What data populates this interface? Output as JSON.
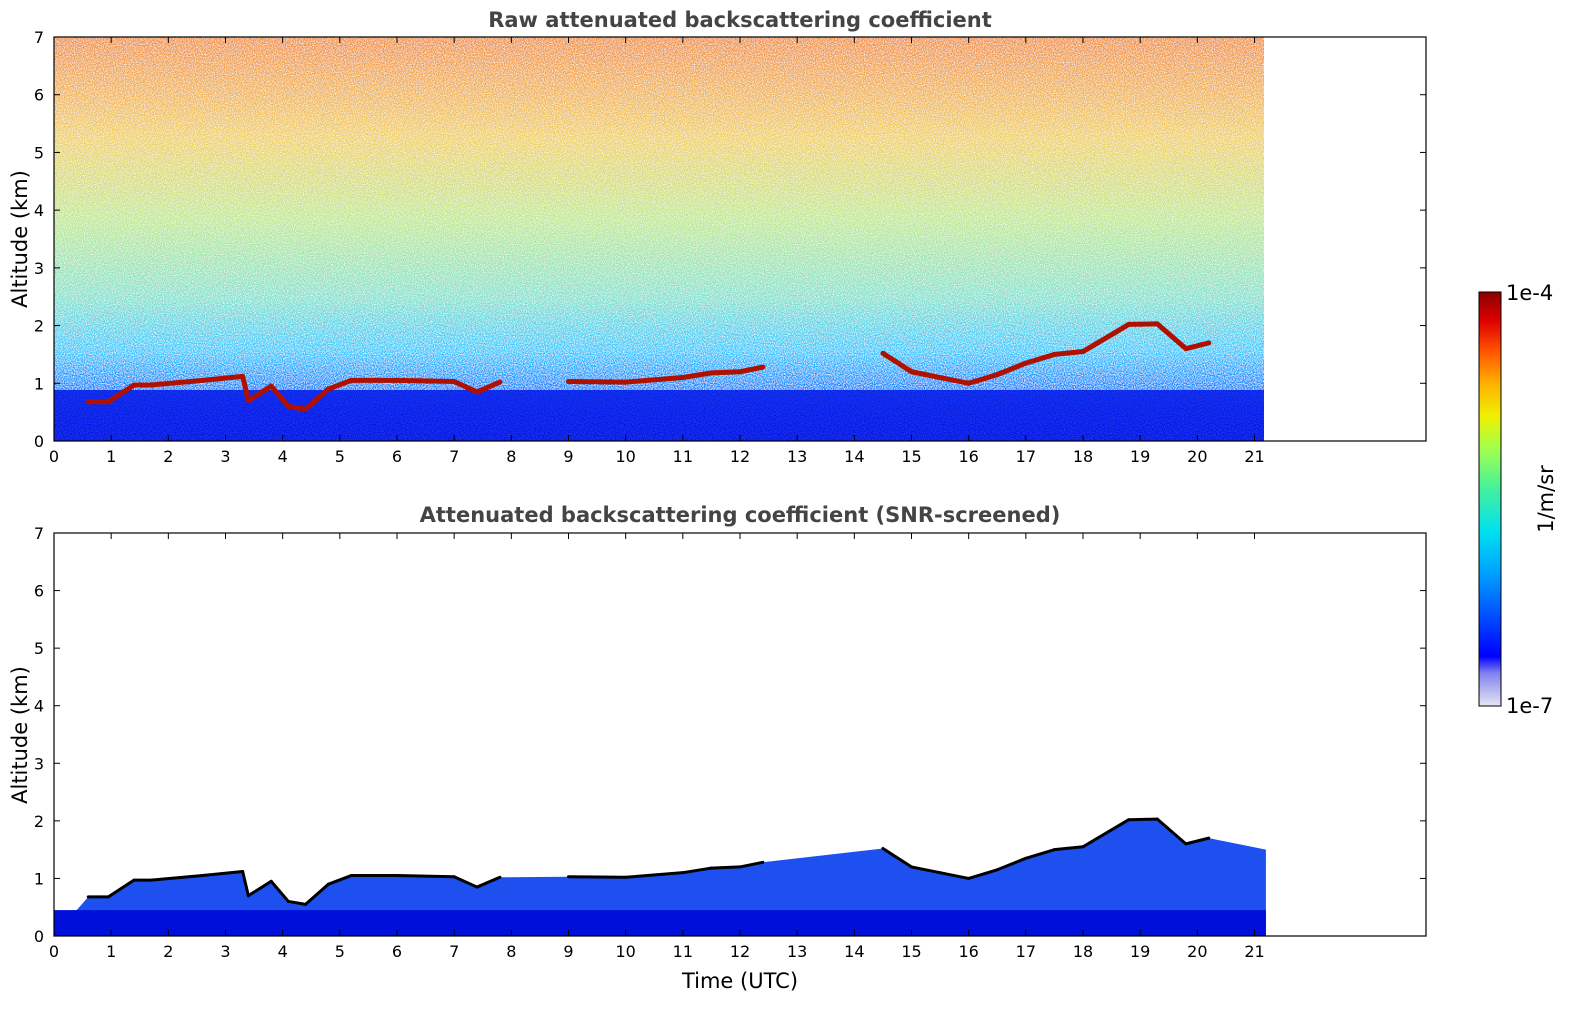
{
  "chart_data": [
    {
      "type": "heatmap",
      "title": "Raw attenuated backscattering coefficient",
      "xlabel": "",
      "ylabel": "Altitude (km)",
      "xlim": [
        0,
        24
      ],
      "ylim": [
        0,
        7
      ],
      "x_ticks": [
        0,
        1,
        2,
        3,
        4,
        5,
        6,
        7,
        8,
        9,
        10,
        11,
        12,
        13,
        14,
        15,
        16,
        17,
        18,
        19,
        20,
        21
      ],
      "y_ticks": [
        0,
        1,
        2,
        3,
        4,
        5,
        6,
        7
      ],
      "data_extent_x": [
        0,
        21.2
      ],
      "grid": false,
      "layers": {
        "cloud_base_km": [
          {
            "x": 0.6,
            "y": 0.68
          },
          {
            "x": 0.95,
            "y": 0.68
          },
          {
            "x": 1.4,
            "y": 0.97
          },
          {
            "x": 1.7,
            "y": 0.97
          },
          {
            "x": 2.6,
            "y": 1.05
          },
          {
            "x": 3.3,
            "y": 1.12
          },
          {
            "x": 3.4,
            "y": 0.7
          },
          {
            "x": 3.8,
            "y": 0.95
          },
          {
            "x": 4.1,
            "y": 0.6
          },
          {
            "x": 4.4,
            "y": 0.55
          },
          {
            "x": 4.8,
            "y": 0.9
          },
          {
            "x": 5.2,
            "y": 1.05
          },
          {
            "x": 6.0,
            "y": 1.05
          },
          {
            "x": 7.0,
            "y": 1.03
          },
          {
            "x": 7.4,
            "y": 0.85
          },
          {
            "x": 7.8,
            "y": 1.02
          },
          {
            "x": 9.0,
            "y": 1.03
          },
          {
            "x": 10.0,
            "y": 1.02
          },
          {
            "x": 11.0,
            "y": 1.1
          },
          {
            "x": 11.5,
            "y": 1.18
          },
          {
            "x": 12.0,
            "y": 1.2
          },
          {
            "x": 12.4,
            "y": 1.28
          },
          {
            "x": 14.5,
            "y": 1.52
          },
          {
            "x": 15.0,
            "y": 1.2
          },
          {
            "x": 15.5,
            "y": 1.1
          },
          {
            "x": 16.0,
            "y": 1.0
          },
          {
            "x": 16.5,
            "y": 1.15
          },
          {
            "x": 17.0,
            "y": 1.35
          },
          {
            "x": 17.5,
            "y": 1.5
          },
          {
            "x": 18.0,
            "y": 1.55
          },
          {
            "x": 18.8,
            "y": 2.02
          },
          {
            "x": 19.3,
            "y": 2.03
          },
          {
            "x": 19.8,
            "y": 1.6
          },
          {
            "x": 20.2,
            "y": 1.7
          }
        ]
      }
    },
    {
      "type": "heatmap",
      "title": "Attenuated backscattering coefficient (SNR-screened)",
      "xlabel": "Time (UTC)",
      "ylabel": "Altitude (km)",
      "xlim": [
        0,
        24
      ],
      "ylim": [
        0,
        7
      ],
      "x_ticks": [
        0,
        1,
        2,
        3,
        4,
        5,
        6,
        7,
        8,
        9,
        10,
        11,
        12,
        13,
        14,
        15,
        16,
        17,
        18,
        19,
        20,
        21
      ],
      "y_ticks": [
        0,
        1,
        2,
        3,
        4,
        5,
        6,
        7
      ],
      "data_extent_x": [
        0,
        21.2
      ],
      "grid": false
    }
  ],
  "colorbar": {
    "label": "1/m/sr",
    "top_label": "1e-4",
    "bottom_label": "1e-7",
    "colors": [
      "#e6e6f5",
      "#b4b4f0",
      "#8080f0",
      "#0000ff",
      "#0040ff",
      "#0080ff",
      "#00c0ff",
      "#00e0e0",
      "#20f0a0",
      "#80ff60",
      "#c0ff30",
      "#f0f000",
      "#ffc000",
      "#ff8000",
      "#ff4000",
      "#e00000",
      "#900000"
    ]
  },
  "colors": {
    "background": "#ffffff",
    "title": "#444444",
    "cloud_layer": "#b01000"
  }
}
